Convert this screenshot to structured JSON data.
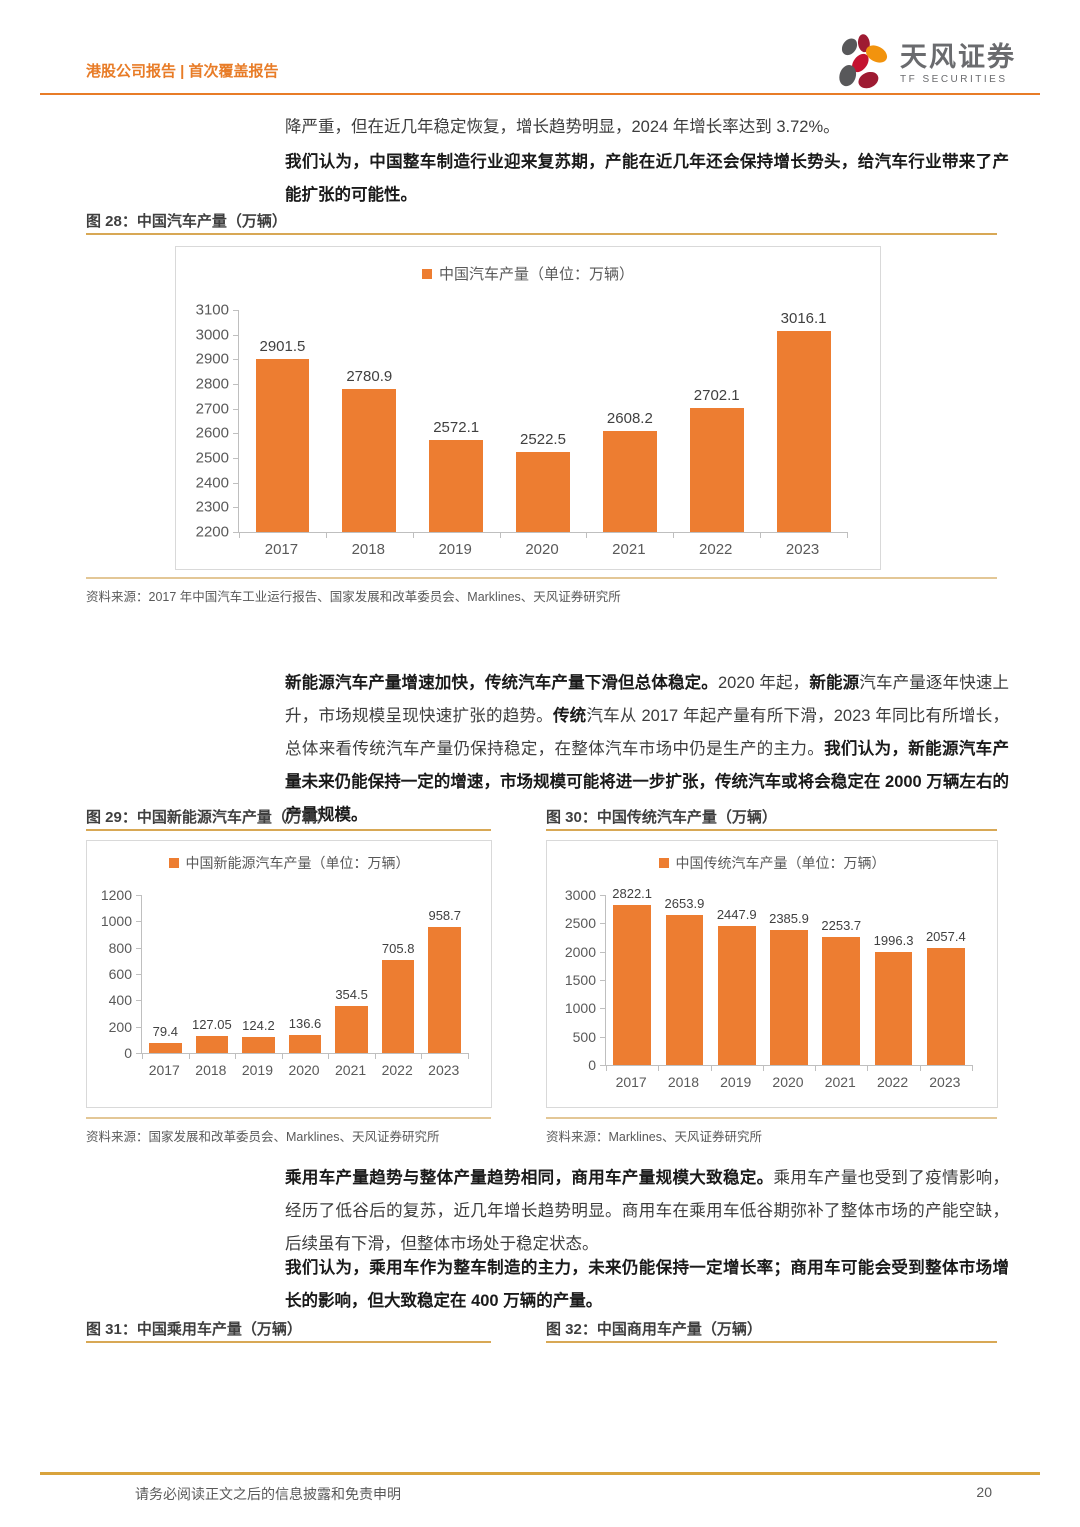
{
  "header": {
    "breadcrumb": "港股公司报告 | 首次覆盖报告",
    "brand_cn": "天风证券",
    "brand_en": "TF SECURITIES"
  },
  "paragraphs": {
    "p1": "降严重，但在近几年稳定恢复，增长趋势明显，2024 年增长率达到 3.72%。",
    "p2": "我们认为，中国整车制造行业迎来复苏期，产能在近几年还会保持增长势头，给汽车行业带来了产能扩张的可能性。",
    "mid_runs": [
      {
        "b": 1,
        "t": "新能源汽车产量增速加快，传统汽车产量下滑但总体稳定。"
      },
      {
        "b": 0,
        "t": "2020 年起，"
      },
      {
        "b": 1,
        "t": "新能源"
      },
      {
        "b": 0,
        "t": "汽车产量逐年快速上升，市场规模呈现快速扩张的趋势。"
      },
      {
        "b": 1,
        "t": "传统"
      },
      {
        "b": 0,
        "t": "汽车从 2017 年起产量有所下滑，2023 年同比有所增长，总体来看传统汽车产量仍保持稳定，在整体汽车市场中仍是生产的主力。"
      },
      {
        "b": 1,
        "t": "我们认为，新能源汽车产量未来仍能保持一定的增速，市场规模可能将进一步扩张，传统汽车或将会稳定在 2000 万辆左右的产量规模。"
      }
    ],
    "bottom1_runs": [
      {
        "b": 1,
        "t": "乘用车产量趋势与整体产量趋势相同，商用车产量规模大致稳定。"
      },
      {
        "b": 0,
        "t": "乘用车产量也受到了疫情影响，经历了低谷后的复苏，近几年增长趋势明显。商用车在乘用车低谷期弥补了整体市场的产能空缺，后续虽有下滑，但整体市场处于稳定状态。"
      }
    ],
    "bottom2_runs": [
      {
        "b": 1,
        "t": "我们认为，乘用车作为整车制造的主力，未来仍能保持一定增长率；商用车可能会受到整体市场增长的影响，但大致稳定在 400 万辆的产量。"
      }
    ]
  },
  "chart_data": [
    {
      "type": "bar",
      "title": "图 28：中国汽车产量（万辆）",
      "legend": "中国汽车产量（单位：万辆）",
      "source": "资料来源：2017 年中国汽车工业运行报告、国家发展和改革委员会、Marklines、天风证券研究所",
      "categories": [
        "2017",
        "2018",
        "2019",
        "2020",
        "2021",
        "2022",
        "2023"
      ],
      "values": [
        2901.5,
        2780.9,
        2572.1,
        2522.5,
        2608.2,
        2702.1,
        3016.1
      ],
      "ylim": [
        2200,
        3100
      ],
      "ytick_step": 100,
      "grid": false,
      "legend_position": "top",
      "bar_color": "#ED7D31"
    },
    {
      "type": "bar",
      "title": "图 29：中国新能源汽车产量（万辆）",
      "legend": "中国新能源汽车产量（单位：万辆）",
      "source": "资料来源：国家发展和改革委员会、Marklines、天风证券研究所",
      "categories": [
        "2017",
        "2018",
        "2019",
        "2020",
        "2021",
        "2022",
        "2023"
      ],
      "values": [
        79.4,
        127.05,
        124.2,
        136.6,
        354.5,
        705.8,
        958.7
      ],
      "ylim": [
        0,
        1200
      ],
      "ytick_step": 200,
      "grid": false,
      "legend_position": "top",
      "bar_color": "#ED7D31"
    },
    {
      "type": "bar",
      "title": "图 30：中国传统汽车产量（万辆）",
      "legend": "中国传统汽车产量（单位：万辆）",
      "source": "资料来源：Marklines、天风证券研究所",
      "categories": [
        "2017",
        "2018",
        "2019",
        "2020",
        "2021",
        "2022",
        "2023"
      ],
      "values": [
        2822.1,
        2653.9,
        2447.9,
        2385.9,
        2253.7,
        1996.3,
        2057.4
      ],
      "ylim": [
        0,
        3000
      ],
      "ytick_step": 500,
      "grid": false,
      "legend_position": "top",
      "bar_color": "#ED7D31"
    }
  ],
  "figures": {
    "fig31_title": "图 31：中国乘用车产量（万辆）",
    "fig32_title": "图 32：中国商用车产量（万辆）"
  },
  "footer": {
    "disclaimer": "请务必阅读正文之后的信息披露和免责申明",
    "page_number": "20"
  },
  "theme": {
    "accent_orange": "#E87C27",
    "bar_orange": "#ED7D31",
    "rule_gold": "#D8A855",
    "rule_tan": "#E3C796",
    "gold_strong": "#D9A33C",
    "logo_gray": "#58585A",
    "logo_red": "#C41230",
    "logo_crimson": "#9E1B32",
    "logo_orange": "#F2930D"
  }
}
